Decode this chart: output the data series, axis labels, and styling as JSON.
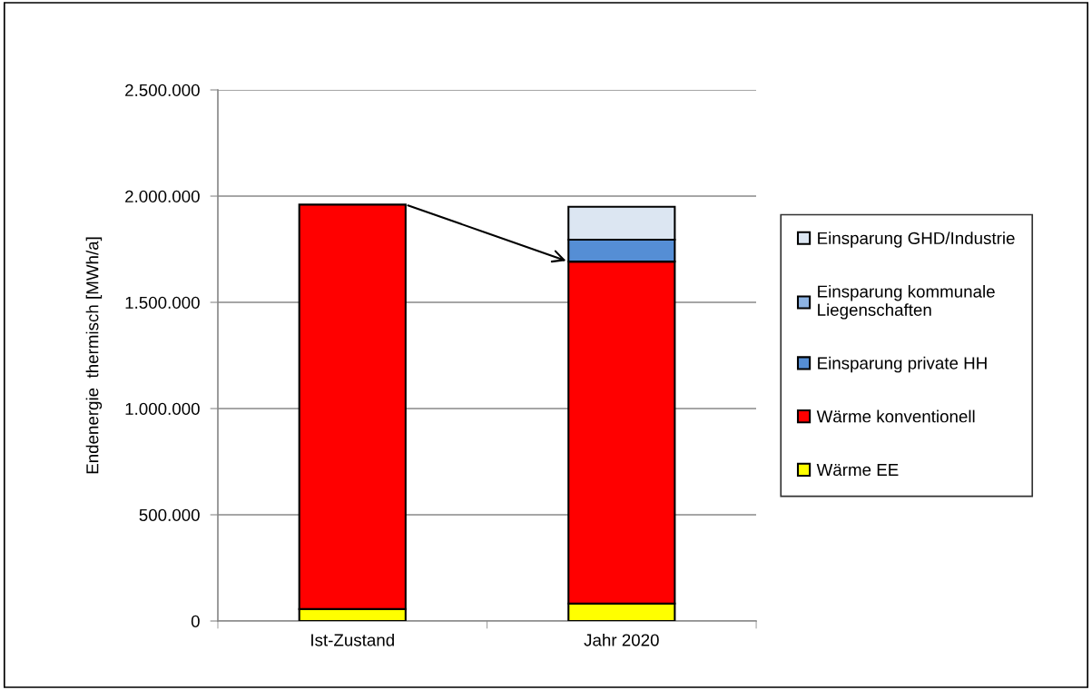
{
  "chart_data": {
    "type": "bar",
    "stacked": true,
    "ylabel": "Endenergie  thermisch [MWh/a]",
    "categories": [
      "Ist-Zustand",
      "Jahr 2020"
    ],
    "series": [
      {
        "name": "Wärme EE",
        "color": "#ffff00",
        "values": [
          56000,
          82000
        ]
      },
      {
        "name": "Wärme konventionell",
        "color": "#ff0000",
        "values": [
          1904000,
          1610000
        ]
      },
      {
        "name": "Einsparung private HH",
        "color": "#558ed5",
        "values": [
          null,
          103000
        ]
      },
      {
        "name": "Einsparung kommunale\nLiegenschaften",
        "color": "#8eb4e3",
        "values": [
          null,
          null
        ]
      },
      {
        "name": "Einsparung GHD/Industrie",
        "color": "#dce6f2",
        "values": [
          null,
          155000
        ]
      }
    ],
    "ylim": [
      0,
      2500000
    ],
    "yticks": [
      {
        "value": 0,
        "label": "0"
      },
      {
        "value": 500000,
        "label": "500.000"
      },
      {
        "value": 1000000,
        "label": "1.000.000"
      },
      {
        "value": 1500000,
        "label": "1.500.000"
      },
      {
        "value": 2000000,
        "label": "2.000.000"
      },
      {
        "value": 2500000,
        "label": "2.500.000"
      }
    ],
    "grid": "y",
    "legend": "right"
  }
}
